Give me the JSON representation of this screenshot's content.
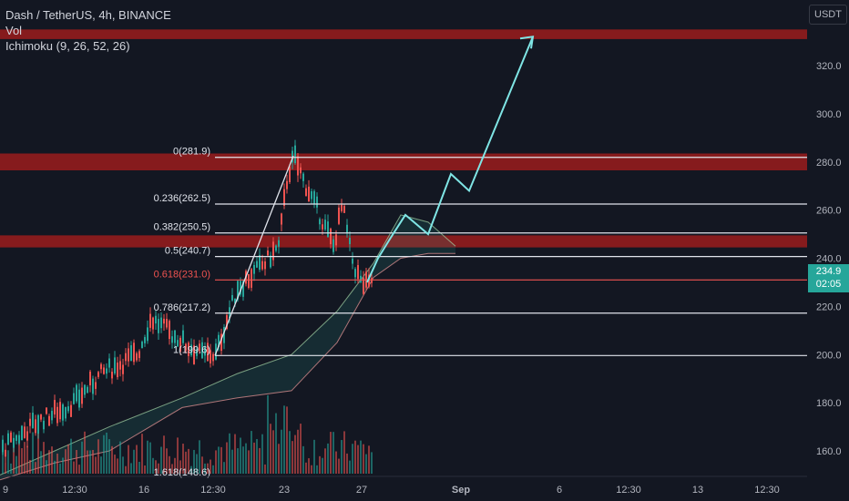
{
  "legend": {
    "title": "Dash / TetherUS, 4h, BINANCE",
    "vol": "Vol",
    "ichimoku": "Ichimoku (9, 26, 52, 26)"
  },
  "currency": "USDT",
  "last_price": {
    "value": "234.9",
    "countdown": "02:05"
  },
  "price_axis": [
    "320.0",
    "300.0",
    "280.0",
    "260.0",
    "240.0",
    "220.0",
    "200.0",
    "180.0",
    "160.0"
  ],
  "time_axis": [
    "9",
    "12:30",
    "16",
    "12:30",
    "23",
    "27",
    "Sep",
    "6",
    "12:30",
    "13",
    "12:30"
  ],
  "fib_levels": [
    {
      "label": "0(281.9)",
      "price": 281.9,
      "color": "#e0e3eb"
    },
    {
      "label": "0.236(262.5)",
      "price": 262.5,
      "color": "#e0e3eb"
    },
    {
      "label": "0.382(250.5)",
      "price": 250.5,
      "color": "#e0e3eb"
    },
    {
      "label": "0.5(240.7)",
      "price": 240.7,
      "color": "#e0e3eb"
    },
    {
      "label": "0.618(231.0)",
      "price": 231.0,
      "color": "#ef5350"
    },
    {
      "label": "0.786(217.2)",
      "price": 217.2,
      "color": "#e0e3eb"
    },
    {
      "label": "1(199.6)",
      "price": 199.6,
      "color": "#e0e3eb"
    },
    {
      "label": "1.618(148.6)",
      "price": 148.6,
      "color": "#e0e3eb"
    }
  ],
  "zones": [
    {
      "from": 331,
      "to": 335
    },
    {
      "from": 276.5,
      "to": 283.5
    },
    {
      "from": 244.5,
      "to": 249.5
    }
  ],
  "colors": {
    "background": "#131722",
    "up": "#26a69a",
    "down": "#ef5350",
    "zone": "#9b1c1c",
    "projection": "#7fe5e5",
    "text": "#d1d4dc"
  },
  "icons": {
    "currency": "dollar-icon"
  }
}
